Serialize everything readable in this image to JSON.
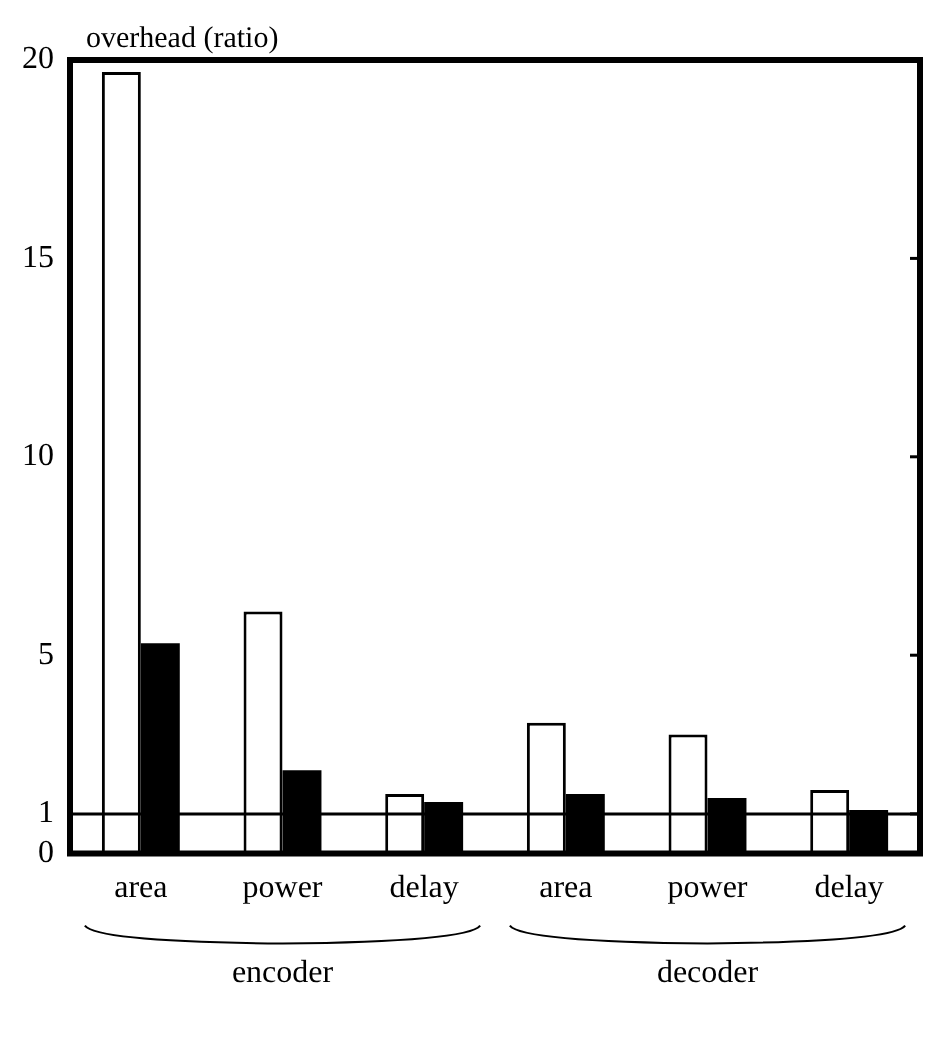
{
  "chart_data": {
    "type": "bar",
    "ylabel": "overhead (ratio)",
    "categories": [
      "area",
      "power",
      "delay",
      "area",
      "power",
      "delay"
    ],
    "series": [
      {
        "color": "#ffffff",
        "values": [
          19.7,
          6.1,
          1.5,
          3.3,
          3.0,
          1.6
        ]
      },
      {
        "color": "#000000",
        "values": [
          5.3,
          2.1,
          1.3,
          1.5,
          1.4,
          1.1
        ]
      }
    ],
    "ylim": [
      0,
      20
    ],
    "yticks": [
      0,
      1,
      5,
      10,
      15,
      20
    ],
    "ref_lines": [
      {
        "axis": "y",
        "value": 1,
        "color": "#000000"
      }
    ],
    "annotations": [
      "encoder",
      "decoder"
    ],
    "grid": false,
    "legend": false
  }
}
